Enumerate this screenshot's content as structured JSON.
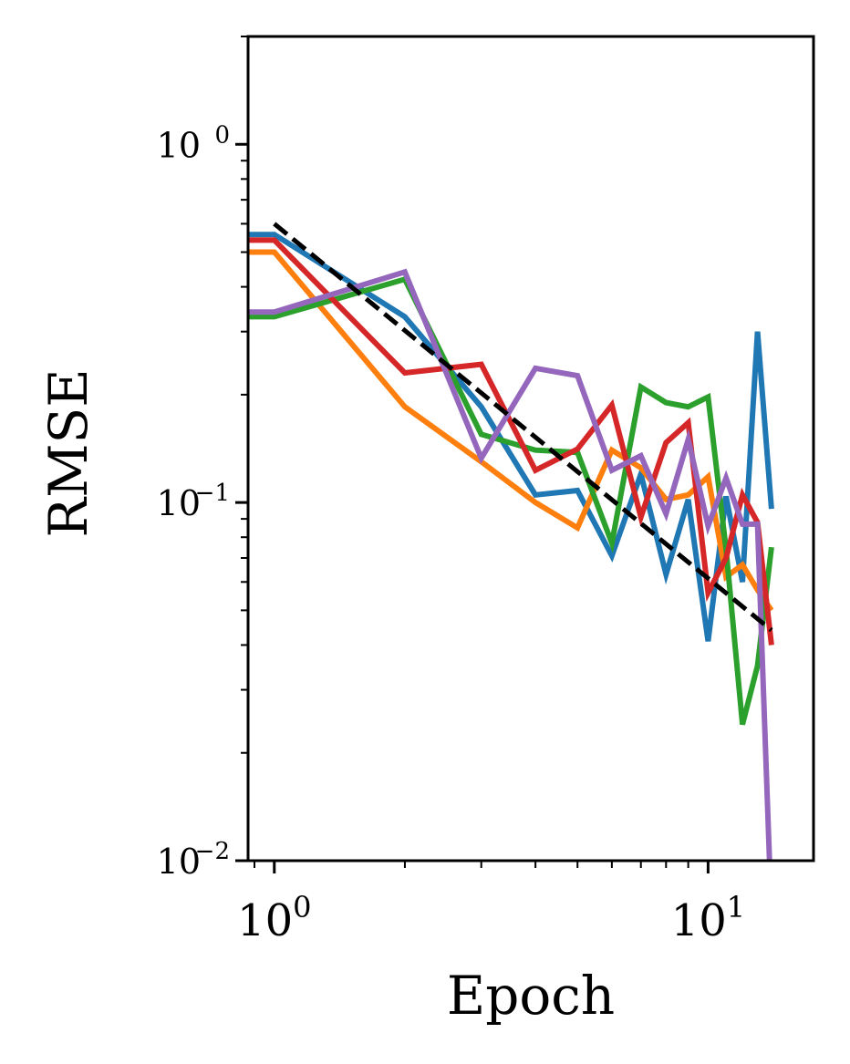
{
  "chart_data": {
    "type": "line",
    "title": "",
    "xlabel": "Epoch",
    "ylabel": "RMSE",
    "xscale": "log",
    "yscale": "log",
    "xlim": [
      0.87,
      17.5
    ],
    "ylim": [
      0.01,
      2.0
    ],
    "grid": false,
    "x_ticks": [
      {
        "value": 1,
        "base": "10",
        "exp": "0"
      },
      {
        "value": 10,
        "base": "10",
        "exp": "1"
      }
    ],
    "y_ticks": [
      {
        "value": 1,
        "base": "10",
        "exp": "0"
      },
      {
        "value": 0.1,
        "base": "10",
        "exp": "−1"
      },
      {
        "value": 0.01,
        "base": "10",
        "exp": "−2"
      }
    ],
    "x": [
      0.87,
      1,
      2,
      3,
      4,
      5,
      6,
      7,
      8,
      9,
      10,
      11,
      12,
      13,
      14
    ],
    "series": [
      {
        "color": "#1f77b4",
        "values": [
          0.56,
          0.56,
          0.33,
          0.185,
          0.105,
          0.108,
          0.071,
          0.12,
          0.063,
          0.102,
          0.041,
          0.104,
          0.06,
          0.3,
          0.096
        ]
      },
      {
        "color": "#ff7f0e",
        "values": [
          0.5,
          0.5,
          0.185,
          0.13,
          0.1,
          0.085,
          0.14,
          0.125,
          0.102,
          0.105,
          0.118,
          0.062,
          0.067,
          0.057,
          0.05
        ]
      },
      {
        "color": "#2ca02c",
        "values": [
          0.33,
          0.33,
          0.42,
          0.155,
          0.14,
          0.138,
          0.077,
          0.21,
          0.19,
          0.185,
          0.197,
          0.074,
          0.024,
          0.035,
          0.075
        ]
      },
      {
        "color": "#d62728",
        "values": [
          0.54,
          0.54,
          0.23,
          0.243,
          0.123,
          0.141,
          0.187,
          0.091,
          0.147,
          0.167,
          0.056,
          0.07,
          0.105,
          0.088,
          0.04
        ]
      },
      {
        "color": "#9467bd",
        "values": [
          0.34,
          0.34,
          0.44,
          0.133,
          0.237,
          0.226,
          0.123,
          0.135,
          0.093,
          0.15,
          0.086,
          0.117,
          0.087,
          0.087,
          0.007
        ]
      }
    ],
    "reference_line": {
      "color": "#000000",
      "style": "dashed",
      "x": [
        1,
        14
      ],
      "y": [
        0.6,
        0.044
      ]
    }
  }
}
